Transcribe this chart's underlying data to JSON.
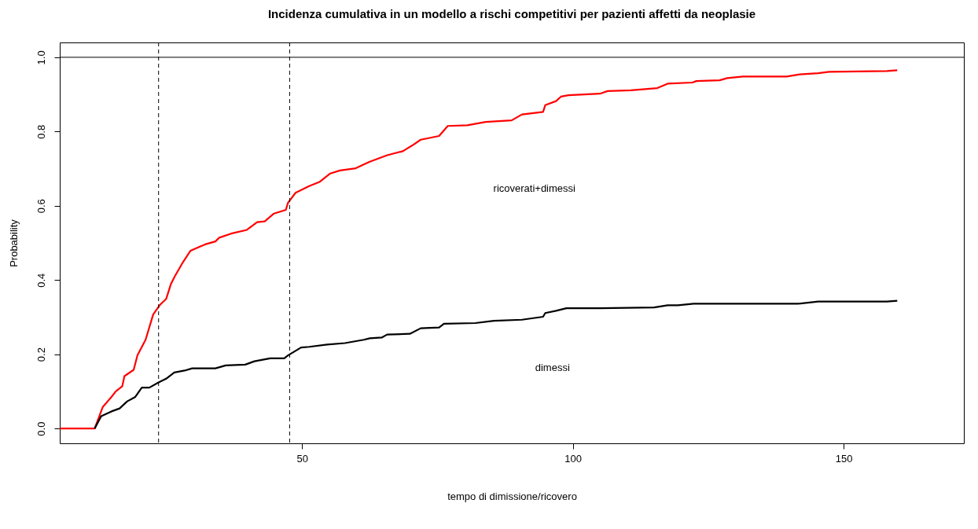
{
  "chart_data": {
    "type": "line",
    "title": "Incidenza cumulativa in un modello a rischi competitivi per pazienti affetti da neoplasie",
    "xlabel": "tempo di dimissione/ricovero",
    "ylabel": "Probability",
    "xlim": [
      5.25,
      172.2
    ],
    "ylim": [
      -0.04,
      1.04
    ],
    "xticks": [
      50,
      100,
      150
    ],
    "yticks": [
      {
        "value": 0,
        "label": "0.0"
      },
      0.2,
      0.4,
      0.6,
      0.8,
      {
        "value": 1,
        "label": "1.0"
      }
    ],
    "grid": false,
    "marker": "none",
    "line_style": "solid",
    "series": [
      {
        "color": "#ff0000",
        "x": [
          5.3,
          11.7,
          13.2,
          14.8,
          15.6,
          16.8,
          17.2,
          18.9,
          19.6,
          21.1,
          22.5,
          23.7,
          24.9,
          25.8,
          26.5,
          28,
          29.4,
          32.1,
          34,
          34.7,
          36.9,
          39.8,
          41.7,
          43.1,
          44.8,
          47,
          47.4,
          48.8,
          51.3,
          53.2,
          55.2,
          57,
          59.9,
          62.4,
          65.7,
          68.6,
          70.4,
          71.9,
          75.3,
          76.9,
          80.5,
          83.9,
          88.7,
          90.6,
          94.5,
          94.9,
          96.9,
          97.8,
          99.2,
          105,
          106.4,
          110.7,
          115.6,
          117.5,
          122.1,
          122.8,
          127.1,
          128.5,
          131.4,
          139.5,
          141.9,
          145.3,
          147.3,
          158,
          159.9
        ],
        "values": [
          0,
          0,
          0.058,
          0.085,
          0.1,
          0.114,
          0.141,
          0.158,
          0.197,
          0.239,
          0.307,
          0.332,
          0.349,
          0.39,
          0.41,
          0.448,
          0.479,
          0.496,
          0.504,
          0.514,
          0.525,
          0.535,
          0.556,
          0.558,
          0.579,
          0.589,
          0.608,
          0.635,
          0.653,
          0.664,
          0.687,
          0.695,
          0.701,
          0.718,
          0.736,
          0.747,
          0.763,
          0.778,
          0.788,
          0.815,
          0.817,
          0.826,
          0.83,
          0.846,
          0.853,
          0.871,
          0.882,
          0.894,
          0.898,
          0.902,
          0.909,
          0.911,
          0.917,
          0.929,
          0.932,
          0.936,
          0.938,
          0.944,
          0.948,
          0.948,
          0.954,
          0.957,
          0.961,
          0.963,
          0.965
        ]
      },
      {
        "color": "#000000",
        "x": [
          11.7,
          12.9,
          14.8,
          16.3,
          17.7,
          19.2,
          20.4,
          21.8,
          23.5,
          24.9,
          26.4,
          28.3,
          29.7,
          34,
          35.9,
          39.5,
          41.2,
          44.1,
          46.7,
          47.4,
          49.8,
          51.3,
          54.6,
          57.9,
          61.4,
          62.5,
          64.7,
          65.7,
          69.9,
          71.9,
          75.3,
          76.2,
          82,
          85.4,
          90.6,
          94.5,
          94.9,
          96.9,
          98.8,
          105,
          115,
          117.5,
          119.4,
          122.3,
          141.5,
          145.3,
          158,
          159.9
        ],
        "values": [
          0,
          0.033,
          0.046,
          0.054,
          0.073,
          0.085,
          0.11,
          0.11,
          0.124,
          0.134,
          0.151,
          0.156,
          0.162,
          0.162,
          0.17,
          0.172,
          0.181,
          0.189,
          0.189,
          0.197,
          0.218,
          0.22,
          0.226,
          0.23,
          0.239,
          0.243,
          0.245,
          0.253,
          0.255,
          0.27,
          0.272,
          0.282,
          0.284,
          0.29,
          0.293,
          0.301,
          0.311,
          0.317,
          0.324,
          0.324,
          0.326,
          0.332,
          0.332,
          0.336,
          0.336,
          0.342,
          0.342,
          0.344
        ]
      }
    ],
    "ref_lines": [
      {
        "axis": "x",
        "value": 23.5,
        "color": "#000000",
        "line_style": "dashed"
      },
      {
        "axis": "x",
        "value": 47.7,
        "color": "#000000",
        "line_style": "dashed"
      },
      {
        "axis": "y",
        "value": 1,
        "color": "#000000",
        "line_style": "solid"
      }
    ],
    "annotations": [
      "ricoverati+dimessi",
      "dimessi"
    ]
  }
}
